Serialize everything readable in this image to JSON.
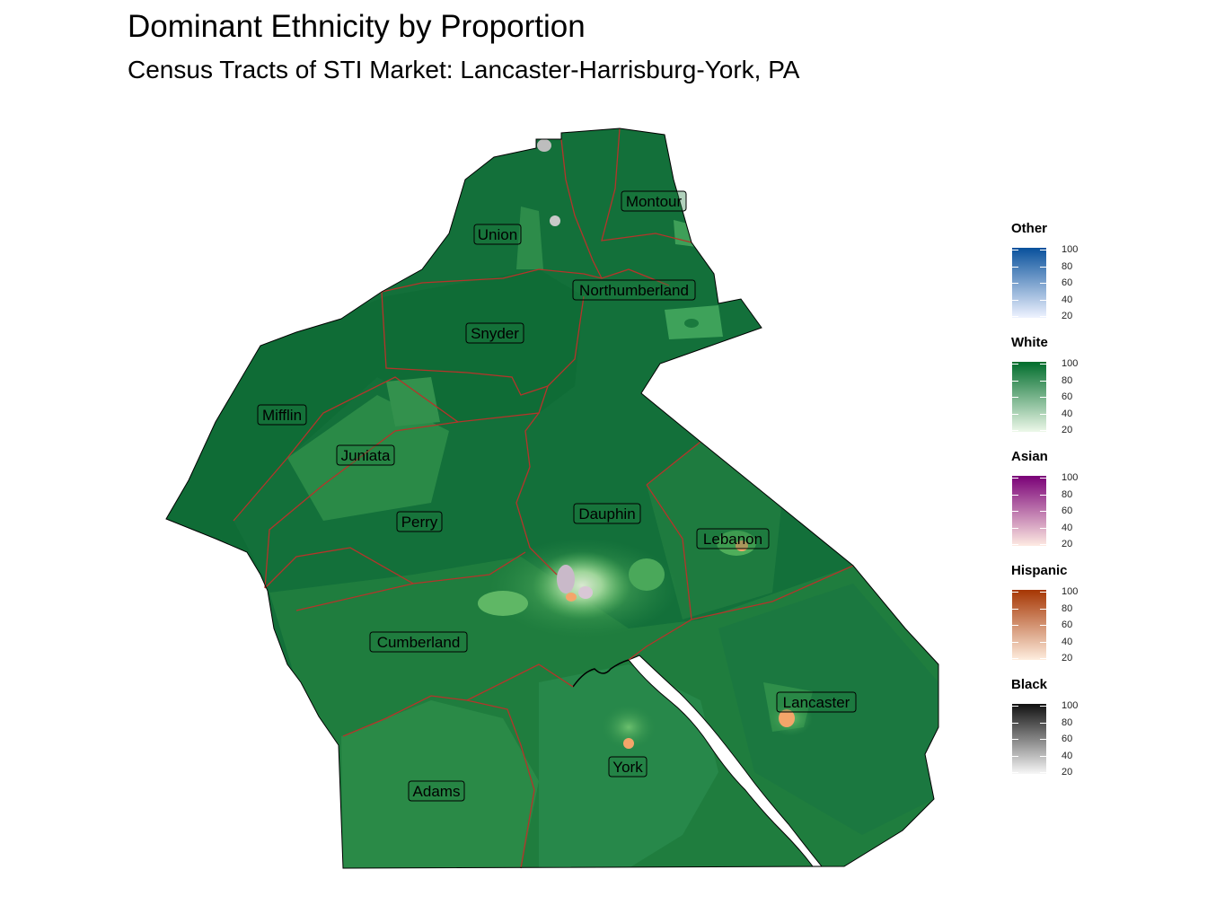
{
  "title": "Dominant Ethnicity by Proportion",
  "subtitle": "Census Tracts of STI Market: Lancaster-Harrisburg-York, PA",
  "counties": [
    {
      "name": "Montour"
    },
    {
      "name": "Union"
    },
    {
      "name": "Northumberland"
    },
    {
      "name": "Snyder"
    },
    {
      "name": "Mifflin"
    },
    {
      "name": "Juniata"
    },
    {
      "name": "Perry"
    },
    {
      "name": "Dauphin"
    },
    {
      "name": "Lebanon"
    },
    {
      "name": "Cumberland"
    },
    {
      "name": "Lancaster"
    },
    {
      "name": "York"
    },
    {
      "name": "Adams"
    }
  ],
  "legend": [
    {
      "title": "Other",
      "color_high": "#08519c",
      "color_low": "#eff3ff",
      "ticks": [
        "100",
        "80",
        "60",
        "40",
        "20"
      ]
    },
    {
      "title": "White",
      "color_high": "#006d2c",
      "color_low": "#edf8e9",
      "ticks": [
        "100",
        "80",
        "60",
        "40",
        "20"
      ]
    },
    {
      "title": "Asian",
      "color_high": "#7a0177",
      "color_low": "#feebe2",
      "ticks": [
        "100",
        "80",
        "60",
        "40",
        "20"
      ]
    },
    {
      "title": "Hispanic",
      "color_high": "#a63603",
      "color_low": "#feedde",
      "ticks": [
        "100",
        "80",
        "60",
        "40",
        "20"
      ]
    },
    {
      "title": "Black",
      "color_high": "#111111",
      "color_low": "#f7f7f7",
      "ticks": [
        "100",
        "80",
        "60",
        "40",
        "20"
      ]
    }
  ],
  "colors": {
    "tract_dark": "#0e6b34",
    "tract_mid": "#217f3f",
    "tract_light": "#2f8f4a",
    "tract_pale": "#6cc06e",
    "county_border": "#b5342a",
    "hispanic_spot": "#f4a56a",
    "mixed_spot": "#c9b9c9"
  }
}
